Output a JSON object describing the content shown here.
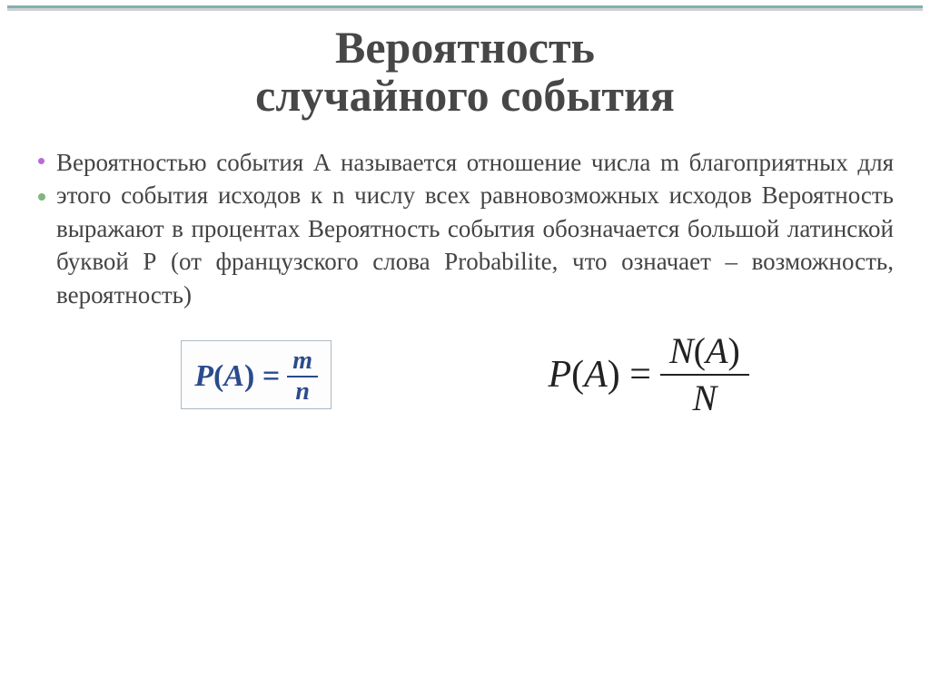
{
  "slide": {
    "title_line1": "Вероятность",
    "title_line2": "случайного события",
    "body": "Вероятностью события А называется отношение числа m благоприятных для этого события исходов к n числу всех равновозможных исходов Вероятность выражают в процентах Вероятность события обозначается большой латинской буквой Р (от французского слова Probabilite, что означает – возможность, вероятность)",
    "bullet_colors": {
      "primary": "#b96ad9",
      "secondary": "#7fb77e"
    },
    "title_color": "#474747",
    "text_color": "#444444",
    "title_fontsize": 50,
    "body_fontsize": 27,
    "top_bar": {
      "teal": "#5f9ea0",
      "grey": "#b0b0b0"
    }
  },
  "formula_left": {
    "lhs_P": "P",
    "lhs_open": "(",
    "lhs_A": "A",
    "lhs_close": ")",
    "eq": " = ",
    "numerator": "m",
    "denominator": "n",
    "color": "#2a4b8d",
    "border_color": "#aeb8c2",
    "fontsize": 34,
    "frac_fontsize": 28
  },
  "formula_right": {
    "lhs_P": "P",
    "lhs_open": "(",
    "lhs_A": "A",
    "lhs_close": ")",
    "eq": " = ",
    "num_N": "N",
    "num_open": "(",
    "num_A": "A",
    "num_close": ")",
    "den": "N",
    "color": "#222222",
    "fontsize": 42,
    "frac_fontsize": 40
  }
}
